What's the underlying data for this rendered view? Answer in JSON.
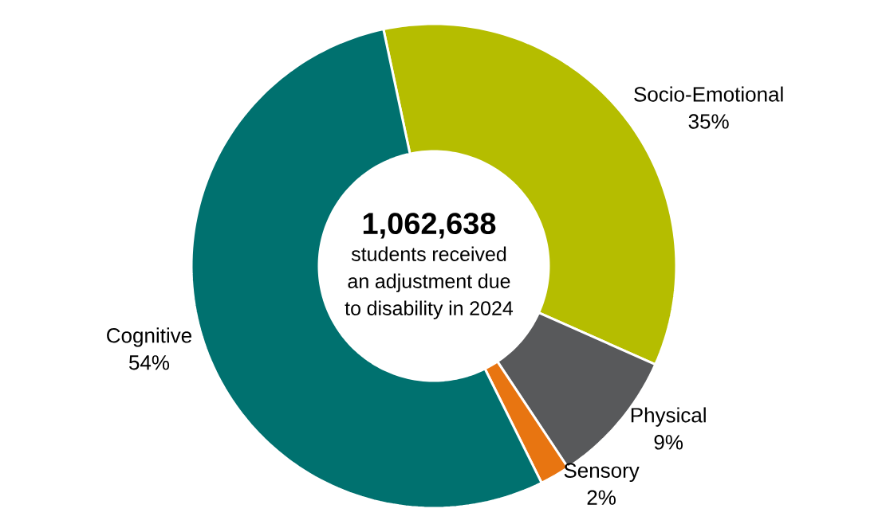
{
  "chart_data": {
    "type": "donut",
    "categories": [
      "Socio-Emotional",
      "Physical",
      "Sensory",
      "Cognitive"
    ],
    "values": [
      35,
      9,
      2,
      54
    ],
    "value_labels": [
      "35%",
      "9%",
      "2%",
      "54%"
    ],
    "colors": [
      "#b5bd00",
      "#58595b",
      "#e87511",
      "#00716f"
    ],
    "annotations": [
      "**1,062,638**",
      "students received an adjustment due to disability in 2024"
    ]
  }
}
